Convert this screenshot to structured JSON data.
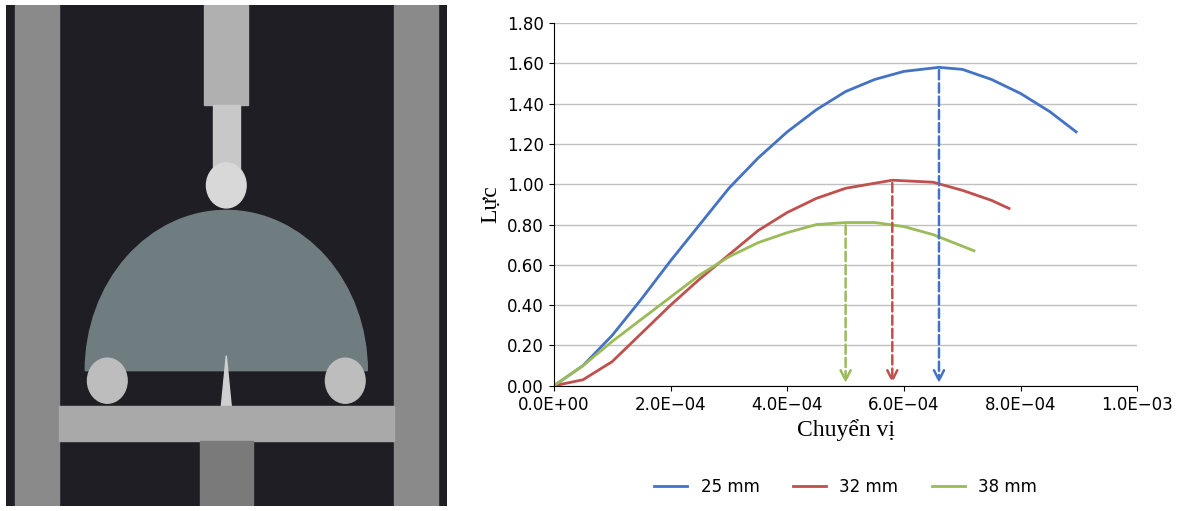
{
  "chart_data": {
    "type": "line",
    "x_label": "Chuyển vị",
    "y_label": "Lực",
    "xlim": [
      0,
      0.001
    ],
    "xticks": [
      {
        "value": 0,
        "label": "0.0E+00"
      },
      {
        "value": 0.0002,
        "label": "2.0E−04"
      },
      {
        "value": 0.0004,
        "label": "4.0E−04"
      },
      {
        "value": 0.0006,
        "label": "6.0E−04"
      },
      {
        "value": 0.0008,
        "label": "8.0E−04"
      },
      {
        "value": 0.001,
        "label": "1.0E−03"
      }
    ],
    "ylim": [
      0,
      1.8
    ],
    "yticks": [
      {
        "value": 0,
        "label": "0.00"
      },
      {
        "value": 0.2,
        "label": "0.20"
      },
      {
        "value": 0.4,
        "label": "0.40"
      },
      {
        "value": 0.6,
        "label": "0.60"
      },
      {
        "value": 0.8,
        "label": "0.80"
      },
      {
        "value": 1.0,
        "label": "1.00"
      },
      {
        "value": 1.2,
        "label": "1.20"
      },
      {
        "value": 1.4,
        "label": "1.40"
      },
      {
        "value": 1.6,
        "label": "1.60"
      },
      {
        "value": 1.8,
        "label": "1.80"
      }
    ],
    "grid": true,
    "legend": "lower center",
    "series": [
      {
        "name": "25 mm",
        "color": "#4472c4",
        "x": [
          0,
          5e-05,
          0.0001,
          0.00015,
          0.0002,
          0.00025,
          0.0003,
          0.00035,
          0.0004,
          0.00045,
          0.0005,
          0.00055,
          0.0006,
          0.00066,
          0.0007,
          0.00075,
          0.0008,
          0.00085,
          0.000895
        ],
        "values": [
          0,
          0.1,
          0.25,
          0.43,
          0.62,
          0.8,
          0.98,
          1.13,
          1.26,
          1.37,
          1.46,
          1.52,
          1.56,
          1.58,
          1.57,
          1.52,
          1.45,
          1.36,
          1.26
        ],
        "peak": [
          0.00066,
          1.58
        ]
      },
      {
        "name": "32 mm",
        "color": "#c0504d",
        "x": [
          0,
          5e-05,
          0.0001,
          0.00015,
          0.0002,
          0.00025,
          0.0003,
          0.00035,
          0.0004,
          0.00045,
          0.0005,
          0.00058,
          0.00065,
          0.0007,
          0.00075,
          0.00078
        ],
        "values": [
          0,
          0.03,
          0.12,
          0.26,
          0.4,
          0.53,
          0.65,
          0.77,
          0.86,
          0.93,
          0.98,
          1.02,
          1.01,
          0.97,
          0.92,
          0.88
        ],
        "peak": [
          0.00058,
          1.02
        ]
      },
      {
        "name": "38 mm",
        "color": "#9bbb59",
        "x": [
          0,
          5e-05,
          0.0001,
          0.00015,
          0.0002,
          0.00025,
          0.0003,
          0.00035,
          0.0004,
          0.00045,
          0.0005,
          0.00055,
          0.0006,
          0.00065,
          0.00072
        ],
        "values": [
          0,
          0.1,
          0.22,
          0.33,
          0.44,
          0.55,
          0.64,
          0.71,
          0.76,
          0.8,
          0.81,
          0.81,
          0.79,
          0.75,
          0.67
        ],
        "peak": [
          0.0005,
          0.81
        ]
      }
    ]
  }
}
